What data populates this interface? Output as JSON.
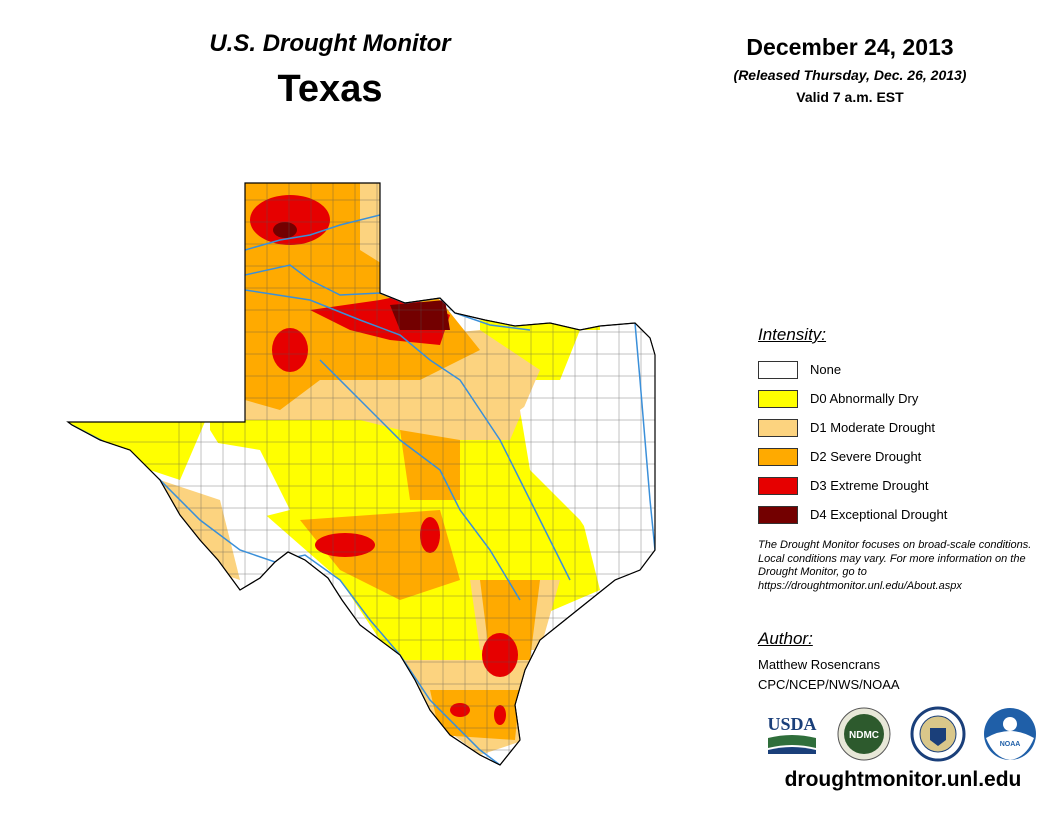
{
  "header": {
    "title": "U.S. Drought Monitor",
    "state": "Texas",
    "date": "December 24, 2013",
    "released": "(Released Thursday, Dec. 26, 2013)",
    "valid": "Valid 7 a.m. EST"
  },
  "legend": {
    "title": "Intensity:",
    "items": [
      {
        "label": "None",
        "color": "#ffffff"
      },
      {
        "label": "D0 Abnormally Dry",
        "color": "#ffff00"
      },
      {
        "label": "D1 Moderate Drought",
        "color": "#fcd37f"
      },
      {
        "label": "D2 Severe Drought",
        "color": "#ffaa00"
      },
      {
        "label": "D3 Extreme Drought",
        "color": "#e60000"
      },
      {
        "label": "D4 Exceptional Drought",
        "color": "#730000"
      }
    ]
  },
  "note": "The Drought Monitor focuses on broad-scale conditions. Local conditions may vary. For more information on the Drought Monitor, go to https://droughtmonitor.unl.edu/About.aspx",
  "author": {
    "title": "Author:",
    "name": "Matthew Rosencrans",
    "org": "CPC/NCEP/NWS/NOAA"
  },
  "logos": {
    "usda": "USDA",
    "ndmc": "NDMC",
    "noaa": "NOAA"
  },
  "website": "droughtmonitor.unl.edu"
}
